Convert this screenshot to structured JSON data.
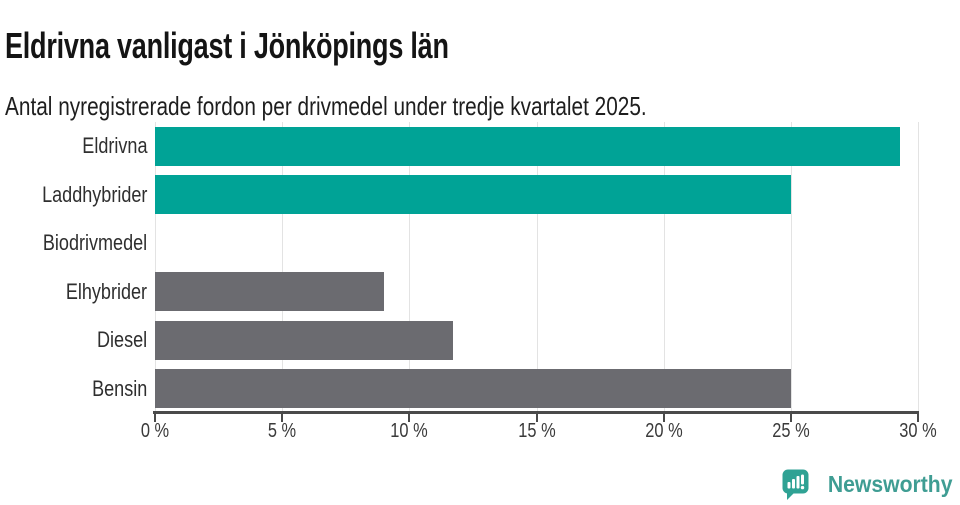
{
  "chart_data": {
    "type": "bar",
    "orientation": "horizontal",
    "title": "Eldrivna vanligast i Jönköpings län",
    "subtitle": "Antal nyregistrerade fordon per drivmedel under tredje kvartalet 2025.",
    "categories": [
      "Eldrivna",
      "Laddhybrider",
      "Biodrivmedel",
      "Elhybrider",
      "Diesel",
      "Bensin"
    ],
    "values": [
      29.3,
      25,
      0,
      9,
      11.7,
      25
    ],
    "unit": "%",
    "bar_colors": [
      "#00a396",
      "#00a396",
      "#00a396",
      "#6b6b70",
      "#6b6b70",
      "#6b6b70"
    ],
    "xlim": [
      0,
      30
    ],
    "xticks": [
      0,
      5,
      10,
      15,
      20,
      25,
      30
    ],
    "xtick_labels": [
      "0 %",
      "5 %",
      "10 %",
      "15 %",
      "20 %",
      "25 %",
      "30 %"
    ],
    "grid": true,
    "legend": false
  },
  "footer": {
    "brand": "Newsworthy",
    "logo_icon": "speech-bubble-bar-chart-exclamation"
  },
  "colors": {
    "bar_teal": "#00a396",
    "bar_gray": "#6b6b70",
    "gridline": "#e3e3e3",
    "axis": "#4a4a4a",
    "title_text": "#141414",
    "label_text": "#2f2f2f",
    "tick_text": "#3a3a3a",
    "logo_icon_teal": "#2fa294",
    "logo_text_teal": "#3f9d93"
  }
}
